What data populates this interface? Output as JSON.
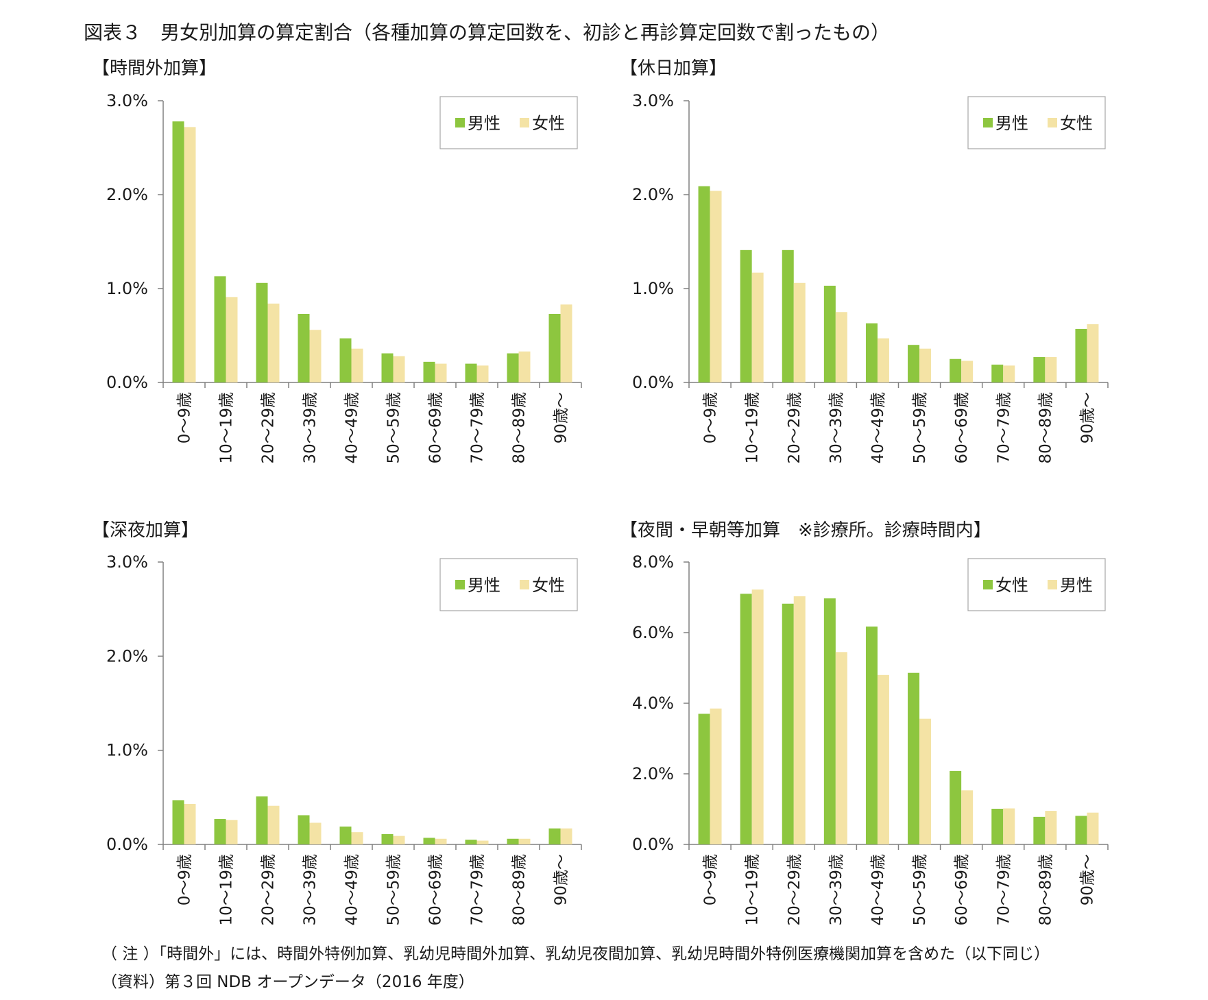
{
  "figure_title": "図表３　男女別加算の算定割合（各種加算の算定回数を、初診と再診算定回数で割ったもの）",
  "note": "（ 注 ）「時間外」には、時間外特例加算、乳幼児時間外加算、乳幼児夜間加算、乳幼児時間外特例医療機関加算を含めた（以下同じ）",
  "source": "（資料）第３回 NDB オープンデータ（2016 年度）",
  "colors": {
    "green": "#8dc63f",
    "cream": "#f4e3a5",
    "axis": "#808080",
    "legend_border": "#a6a6a6"
  },
  "chart_data": [
    {
      "type": "bar",
      "title": "【時間外加算】",
      "categories": [
        "0～9歳",
        "10～19歳",
        "20～29歳",
        "30～39歳",
        "40～49歳",
        "50～59歳",
        "60～69歳",
        "70～79歳",
        "80～89歳",
        "90歳～"
      ],
      "ylim": [
        0,
        3.0
      ],
      "yticks": [
        0,
        1.0,
        2.0,
        3.0
      ],
      "ytick_labels": [
        "0.0%",
        "1.0%",
        "2.0%",
        "3.0%"
      ],
      "legend_position": "top-right",
      "grid": false,
      "series": [
        {
          "name": "男性",
          "color": "green",
          "values": [
            2.78,
            1.13,
            1.06,
            0.73,
            0.47,
            0.31,
            0.22,
            0.2,
            0.31,
            0.73
          ]
        },
        {
          "name": "女性",
          "color": "cream",
          "values": [
            2.72,
            0.91,
            0.84,
            0.56,
            0.36,
            0.28,
            0.2,
            0.18,
            0.33,
            0.83
          ]
        }
      ]
    },
    {
      "type": "bar",
      "title": "【休日加算】",
      "categories": [
        "0～9歳",
        "10～19歳",
        "20～29歳",
        "30～39歳",
        "40～49歳",
        "50～59歳",
        "60～69歳",
        "70～79歳",
        "80～89歳",
        "90歳～"
      ],
      "ylim": [
        0,
        3.0
      ],
      "yticks": [
        0,
        1.0,
        2.0,
        3.0
      ],
      "ytick_labels": [
        "0.0%",
        "1.0%",
        "2.0%",
        "3.0%"
      ],
      "legend_position": "top-right",
      "grid": false,
      "series": [
        {
          "name": "男性",
          "color": "green",
          "values": [
            2.09,
            1.41,
            1.41,
            1.03,
            0.63,
            0.4,
            0.25,
            0.19,
            0.27,
            0.57
          ]
        },
        {
          "name": "女性",
          "color": "cream",
          "values": [
            2.04,
            1.17,
            1.06,
            0.75,
            0.47,
            0.36,
            0.23,
            0.18,
            0.27,
            0.62
          ]
        }
      ]
    },
    {
      "type": "bar",
      "title": "【深夜加算】",
      "categories": [
        "0～9歳",
        "10～19歳",
        "20～29歳",
        "30～39歳",
        "40～49歳",
        "50～59歳",
        "60～69歳",
        "70～79歳",
        "80～89歳",
        "90歳～"
      ],
      "ylim": [
        0,
        3.0
      ],
      "yticks": [
        0,
        1.0,
        2.0,
        3.0
      ],
      "ytick_labels": [
        "0.0%",
        "1.0%",
        "2.0%",
        "3.0%"
      ],
      "legend_position": "top-right",
      "grid": false,
      "series": [
        {
          "name": "男性",
          "color": "green",
          "values": [
            0.47,
            0.27,
            0.51,
            0.31,
            0.19,
            0.11,
            0.07,
            0.05,
            0.06,
            0.17
          ]
        },
        {
          "name": "女性",
          "color": "cream",
          "values": [
            0.43,
            0.26,
            0.41,
            0.23,
            0.13,
            0.09,
            0.06,
            0.04,
            0.06,
            0.17
          ]
        }
      ]
    },
    {
      "type": "bar",
      "title": "【夜間・早朝等加算　※診療所。診療時間内】",
      "categories": [
        "0～9歳",
        "10～19歳",
        "20～29歳",
        "30～39歳",
        "40～49歳",
        "50～59歳",
        "60～69歳",
        "70～79歳",
        "80～89歳",
        "90歳～"
      ],
      "ylim": [
        0,
        8.0
      ],
      "yticks": [
        0,
        2.0,
        4.0,
        6.0,
        8.0
      ],
      "ytick_labels": [
        "0.0%",
        "2.0%",
        "4.0%",
        "6.0%",
        "8.0%"
      ],
      "legend_position": "top-right",
      "grid": false,
      "series": [
        {
          "name": "女性",
          "color": "green",
          "values": [
            3.7,
            7.1,
            6.82,
            6.97,
            6.17,
            4.86,
            2.08,
            1.01,
            0.78,
            0.81
          ]
        },
        {
          "name": "男性",
          "color": "cream",
          "values": [
            3.85,
            7.22,
            7.03,
            5.45,
            4.8,
            3.56,
            1.53,
            1.02,
            0.95,
            0.9
          ]
        }
      ]
    }
  ]
}
